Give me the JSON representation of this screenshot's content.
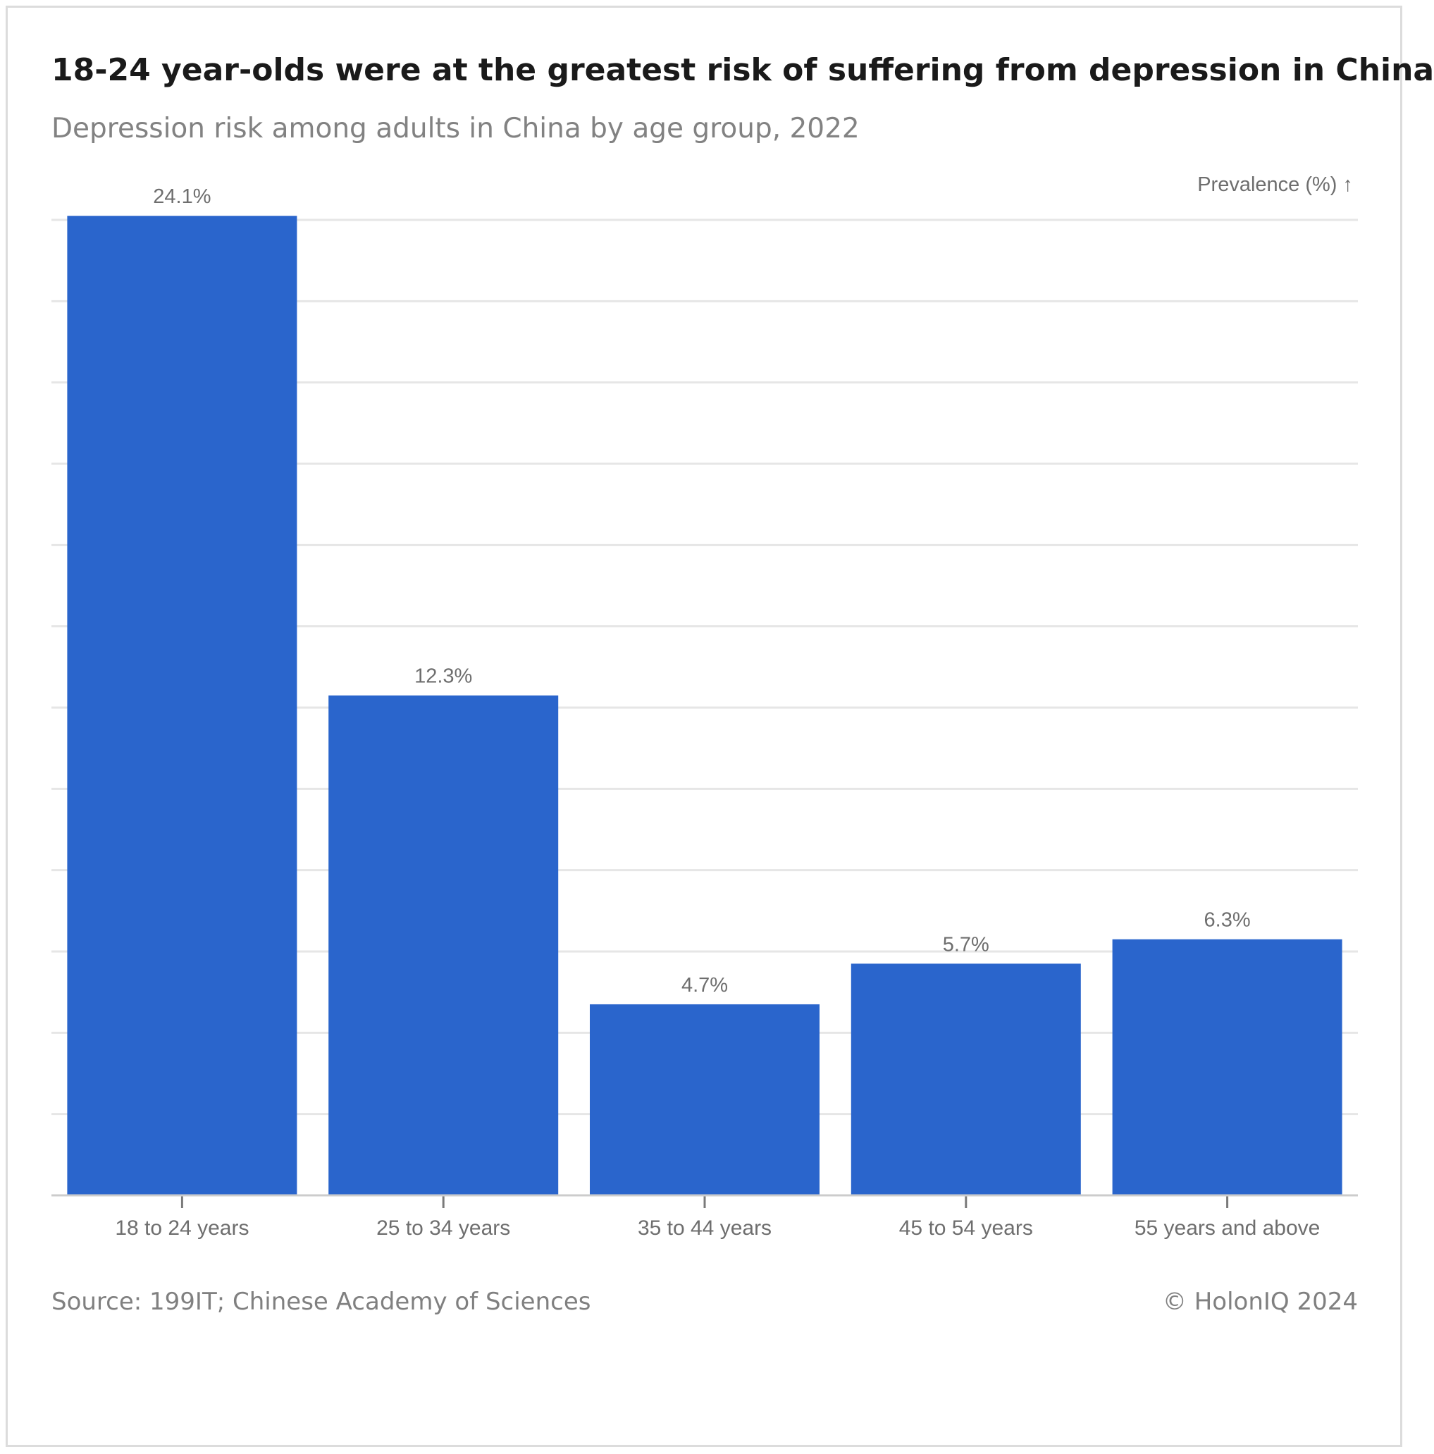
{
  "header": {
    "title": "18-24 year-olds were at the greatest risk of suffering from depression in China",
    "subtitle": "Depression risk among adults in China by age group, 2022"
  },
  "footer": {
    "source": "Source: 199IT; Chinese Academy of Sciences",
    "copyright": "© HolonIQ 2024"
  },
  "colors": {
    "bar": "#2a65cc",
    "grid": "#e6e6e6",
    "axis": "#cccccc",
    "label": "#6e6e6e"
  },
  "chart_data": {
    "type": "bar",
    "title": "18-24 year-olds were at the greatest risk of suffering from depression in China",
    "subtitle": "Depression risk among adults in China by age group, 2022",
    "xlabel": "",
    "ylabel": "Prevalence (%) ↑",
    "categories": [
      "18 to 24 years",
      "25 to 34 years",
      "35 to 44 years",
      "45 to 54 years",
      "55 years and above"
    ],
    "values": [
      24.1,
      12.3,
      4.7,
      5.7,
      6.3
    ],
    "value_labels": [
      "24.1%",
      "12.3%",
      "4.7%",
      "5.7%",
      "6.3%"
    ],
    "ylim": [
      0,
      24
    ],
    "grid": true,
    "y_tick_labels_shown": false
  }
}
